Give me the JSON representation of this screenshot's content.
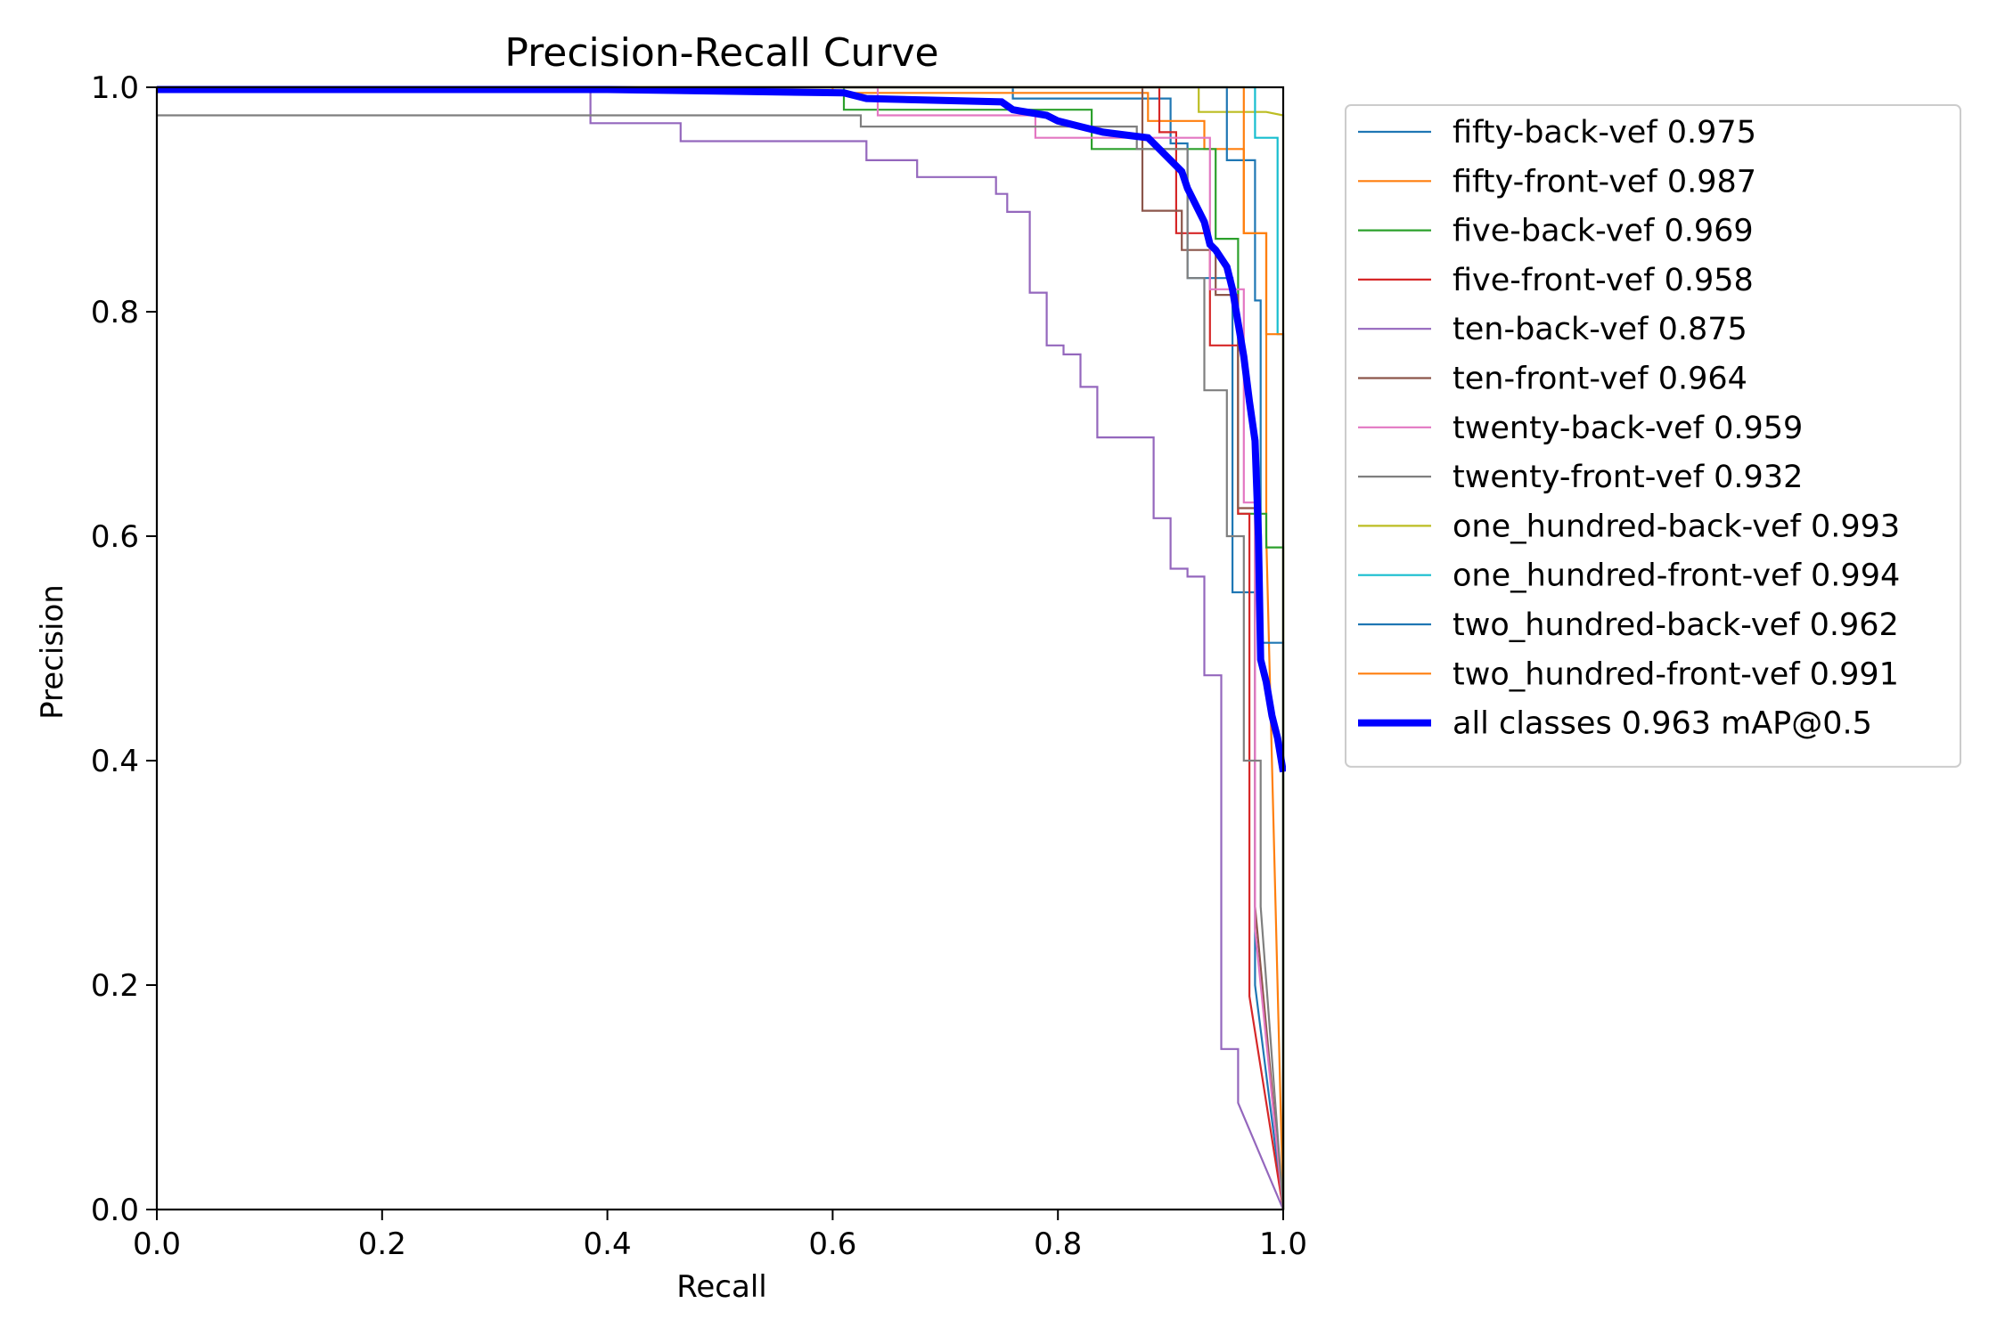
{
  "chart_data": {
    "type": "line",
    "title": "Precision-Recall Curve",
    "xlabel": "Recall",
    "ylabel": "Precision",
    "xlim": [
      0,
      1
    ],
    "ylim": [
      0,
      1
    ],
    "xticks": [
      "0.0",
      "0.2",
      "0.4",
      "0.6",
      "0.8",
      "1.0"
    ],
    "yticks": [
      "0.0",
      "0.2",
      "0.4",
      "0.6",
      "0.8",
      "1.0"
    ],
    "grid": false,
    "legend_position": "outside-right-top",
    "series": [
      {
        "name": "fifty-back-vef 0.975",
        "color": "#1f77b4",
        "width": "thin",
        "points": [
          [
            0,
            1.0
          ],
          [
            0.76,
            1.0
          ],
          [
            0.76,
            0.99
          ],
          [
            0.9,
            0.99
          ],
          [
            0.9,
            0.95
          ],
          [
            0.915,
            0.95
          ],
          [
            0.915,
            0.83
          ],
          [
            0.955,
            0.83
          ],
          [
            0.955,
            0.55
          ],
          [
            0.975,
            0.55
          ],
          [
            0.975,
            0.2
          ],
          [
            1.0,
            0.0
          ]
        ]
      },
      {
        "name": "fifty-front-vef 0.987",
        "color": "#ff7f0e",
        "width": "thin",
        "points": [
          [
            0,
            1.0
          ],
          [
            0.6,
            1.0
          ],
          [
            0.6,
            0.995
          ],
          [
            0.88,
            0.995
          ],
          [
            0.88,
            0.97
          ],
          [
            0.93,
            0.97
          ],
          [
            0.93,
            0.945
          ],
          [
            0.965,
            0.945
          ],
          [
            0.965,
            0.87
          ],
          [
            0.985,
            0.87
          ],
          [
            0.985,
            0.6
          ],
          [
            1.0,
            0.0
          ]
        ]
      },
      {
        "name": "five-back-vef 0.969",
        "color": "#2ca02c",
        "width": "thin",
        "points": [
          [
            0,
            1.0
          ],
          [
            0.61,
            1.0
          ],
          [
            0.61,
            0.98
          ],
          [
            0.83,
            0.98
          ],
          [
            0.83,
            0.945
          ],
          [
            0.94,
            0.945
          ],
          [
            0.94,
            0.865
          ],
          [
            0.96,
            0.865
          ],
          [
            0.96,
            0.62
          ],
          [
            0.985,
            0.62
          ],
          [
            0.985,
            0.59
          ],
          [
            1.0,
            0.59
          ],
          [
            1.0,
            0.0
          ]
        ]
      },
      {
        "name": "five-front-vef 0.958",
        "color": "#d62728",
        "width": "thin",
        "points": [
          [
            0,
            1.0
          ],
          [
            0.89,
            1.0
          ],
          [
            0.89,
            0.96
          ],
          [
            0.905,
            0.96
          ],
          [
            0.905,
            0.87
          ],
          [
            0.935,
            0.87
          ],
          [
            0.935,
            0.77
          ],
          [
            0.96,
            0.77
          ],
          [
            0.96,
            0.62
          ],
          [
            0.97,
            0.62
          ],
          [
            0.97,
            0.19
          ],
          [
            1.0,
            0.0
          ]
        ]
      },
      {
        "name": "ten-back-vef 0.875",
        "color": "#9467bd",
        "width": "thin",
        "points": [
          [
            0,
            1.0
          ],
          [
            0.385,
            1.0
          ],
          [
            0.385,
            0.968
          ],
          [
            0.465,
            0.968
          ],
          [
            0.465,
            0.952
          ],
          [
            0.63,
            0.952
          ],
          [
            0.63,
            0.935
          ],
          [
            0.675,
            0.935
          ],
          [
            0.675,
            0.92
          ],
          [
            0.745,
            0.92
          ],
          [
            0.745,
            0.905
          ],
          [
            0.755,
            0.905
          ],
          [
            0.755,
            0.889
          ],
          [
            0.775,
            0.889
          ],
          [
            0.775,
            0.817
          ],
          [
            0.79,
            0.817
          ],
          [
            0.79,
            0.77
          ],
          [
            0.805,
            0.77
          ],
          [
            0.805,
            0.762
          ],
          [
            0.82,
            0.762
          ],
          [
            0.82,
            0.733
          ],
          [
            0.835,
            0.733
          ],
          [
            0.835,
            0.688
          ],
          [
            0.885,
            0.688
          ],
          [
            0.885,
            0.616
          ],
          [
            0.9,
            0.616
          ],
          [
            0.9,
            0.571
          ],
          [
            0.915,
            0.571
          ],
          [
            0.915,
            0.564
          ],
          [
            0.93,
            0.564
          ],
          [
            0.93,
            0.476
          ],
          [
            0.945,
            0.476
          ],
          [
            0.945,
            0.143
          ],
          [
            0.96,
            0.143
          ],
          [
            0.96,
            0.095
          ],
          [
            1.0,
            0.0
          ]
        ]
      },
      {
        "name": "ten-front-vef 0.964",
        "color": "#8c564b",
        "width": "thin",
        "points": [
          [
            0,
            1.0
          ],
          [
            0.875,
            1.0
          ],
          [
            0.875,
            0.89
          ],
          [
            0.91,
            0.89
          ],
          [
            0.91,
            0.855
          ],
          [
            0.94,
            0.855
          ],
          [
            0.94,
            0.815
          ],
          [
            0.96,
            0.815
          ],
          [
            0.96,
            0.625
          ],
          [
            0.975,
            0.625
          ],
          [
            0.975,
            0.27
          ],
          [
            1.0,
            0.0
          ]
        ]
      },
      {
        "name": "twenty-back-vef 0.959",
        "color": "#e377c2",
        "width": "thin",
        "points": [
          [
            0,
            1.0
          ],
          [
            0.64,
            1.0
          ],
          [
            0.64,
            0.975
          ],
          [
            0.78,
            0.975
          ],
          [
            0.78,
            0.955
          ],
          [
            0.935,
            0.955
          ],
          [
            0.935,
            0.82
          ],
          [
            0.965,
            0.82
          ],
          [
            0.965,
            0.63
          ],
          [
            0.975,
            0.63
          ],
          [
            0.975,
            0.25
          ],
          [
            1.0,
            0.0
          ]
        ]
      },
      {
        "name": "twenty-front-vef 0.932",
        "color": "#7f7f7f",
        "width": "thin",
        "points": [
          [
            0,
            0.975
          ],
          [
            0.625,
            0.975
          ],
          [
            0.625,
            0.965
          ],
          [
            0.87,
            0.965
          ],
          [
            0.87,
            0.945
          ],
          [
            0.915,
            0.945
          ],
          [
            0.915,
            0.83
          ],
          [
            0.93,
            0.83
          ],
          [
            0.93,
            0.73
          ],
          [
            0.95,
            0.73
          ],
          [
            0.95,
            0.6
          ],
          [
            0.965,
            0.6
          ],
          [
            0.965,
            0.4
          ],
          [
            0.98,
            0.4
          ],
          [
            0.98,
            0.27
          ],
          [
            1.0,
            0.0
          ]
        ]
      },
      {
        "name": "one_hundred-back-vef 0.993",
        "color": "#bcbd22",
        "width": "thin",
        "points": [
          [
            0,
            1.0
          ],
          [
            0.925,
            1.0
          ],
          [
            0.925,
            0.978
          ],
          [
            0.985,
            0.978
          ],
          [
            1.0,
            0.975
          ],
          [
            1.0,
            0.0
          ]
        ]
      },
      {
        "name": "one_hundred-front-vef 0.994",
        "color": "#17becf",
        "width": "thin",
        "points": [
          [
            0,
            1.0
          ],
          [
            0.975,
            1.0
          ],
          [
            0.975,
            0.955
          ],
          [
            0.995,
            0.955
          ],
          [
            0.995,
            0.78
          ],
          [
            1.0,
            0.78
          ],
          [
            1.0,
            0.0
          ]
        ]
      },
      {
        "name": "two_hundred-back-vef 0.962",
        "color": "#1f77b4",
        "width": "thin",
        "points": [
          [
            0,
            1.0
          ],
          [
            0.95,
            1.0
          ],
          [
            0.95,
            0.935
          ],
          [
            0.975,
            0.935
          ],
          [
            0.975,
            0.81
          ],
          [
            0.98,
            0.81
          ],
          [
            0.98,
            0.505
          ],
          [
            1.0,
            0.505
          ],
          [
            1.0,
            0.0
          ]
        ]
      },
      {
        "name": "two_hundred-front-vef 0.991",
        "color": "#ff7f0e",
        "width": "thin",
        "points": [
          [
            0,
            1.0
          ],
          [
            0.965,
            1.0
          ],
          [
            0.965,
            0.87
          ],
          [
            0.985,
            0.87
          ],
          [
            0.985,
            0.78
          ],
          [
            1.0,
            0.78
          ],
          [
            1.0,
            0.0
          ]
        ]
      },
      {
        "name": "all classes 0.963 mAP@0.5",
        "color": "#0000ff",
        "width": "bold",
        "points": [
          [
            0,
            0.998
          ],
          [
            0.4,
            0.998
          ],
          [
            0.61,
            0.995
          ],
          [
            0.63,
            0.99
          ],
          [
            0.75,
            0.987
          ],
          [
            0.76,
            0.98
          ],
          [
            0.79,
            0.975
          ],
          [
            0.8,
            0.97
          ],
          [
            0.82,
            0.965
          ],
          [
            0.84,
            0.96
          ],
          [
            0.88,
            0.955
          ],
          [
            0.89,
            0.945
          ],
          [
            0.9,
            0.935
          ],
          [
            0.91,
            0.925
          ],
          [
            0.915,
            0.91
          ],
          [
            0.92,
            0.9
          ],
          [
            0.925,
            0.89
          ],
          [
            0.93,
            0.88
          ],
          [
            0.935,
            0.86
          ],
          [
            0.94,
            0.855
          ],
          [
            0.95,
            0.84
          ],
          [
            0.955,
            0.82
          ],
          [
            0.96,
            0.79
          ],
          [
            0.965,
            0.76
          ],
          [
            0.97,
            0.72
          ],
          [
            0.975,
            0.685
          ],
          [
            0.978,
            0.6
          ],
          [
            0.98,
            0.49
          ],
          [
            0.985,
            0.47
          ],
          [
            0.99,
            0.44
          ],
          [
            0.995,
            0.42
          ],
          [
            1.0,
            0.39
          ]
        ]
      }
    ]
  }
}
